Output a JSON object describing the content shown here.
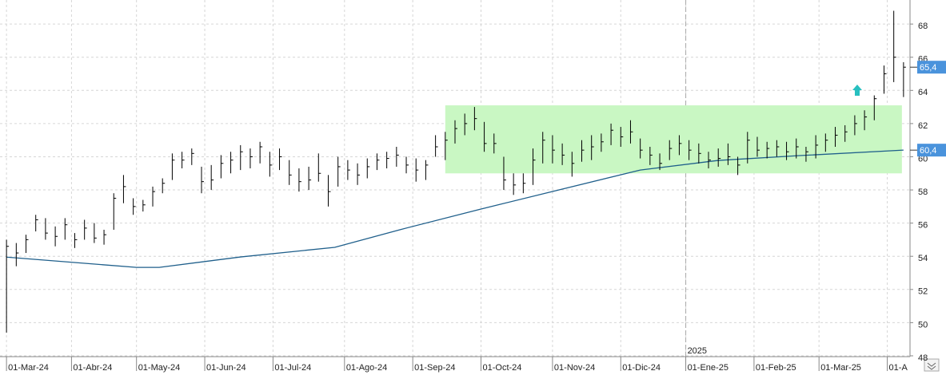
{
  "chart_data": {
    "type": "ohlc",
    "xlim": [
      -2,
      278
    ],
    "ylim": [
      47.95,
      69.45
    ],
    "xticks": [
      {
        "value": 0,
        "label": "01-Mar-24"
      },
      {
        "value": 20,
        "label": "01-Abr-24"
      },
      {
        "value": 40,
        "label": "01-May-24"
      },
      {
        "value": 61,
        "label": "01-Jun-24"
      },
      {
        "value": 82,
        "label": "01-Jul-24"
      },
      {
        "value": 104,
        "label": "01-Ago-24"
      },
      {
        "value": 125,
        "label": "01-Sep-24"
      },
      {
        "value": 146,
        "label": "01-Oct-24"
      },
      {
        "value": 168,
        "label": "01-Nov-24"
      },
      {
        "value": 189,
        "label": "01-Dic-24"
      },
      {
        "value": 209,
        "label": "01-Ene-25"
      },
      {
        "value": 230,
        "label": "01-Feb-25"
      },
      {
        "value": 250,
        "label": "01-Mar-25"
      },
      {
        "value": 271,
        "label": "01-A"
      }
    ],
    "yticks": [
      48,
      50,
      52,
      54,
      56,
      58,
      60,
      62,
      64,
      66,
      68
    ],
    "grid": true,
    "year_marker": {
      "value": 209,
      "label": "2025"
    },
    "bar_color": "#000000",
    "x": [
      0,
      3,
      6,
      9,
      12,
      15,
      18,
      21,
      24,
      27,
      30,
      33,
      36,
      39,
      42,
      45,
      48,
      51,
      54,
      57,
      60,
      63,
      66,
      69,
      72,
      75,
      78,
      81,
      84,
      87,
      90,
      93,
      96,
      99,
      102,
      105,
      108,
      111,
      114,
      117,
      120,
      123,
      126,
      129,
      132,
      135,
      138,
      141,
      144,
      147,
      150,
      153,
      156,
      159,
      162,
      165,
      168,
      171,
      174,
      177,
      180,
      183,
      186,
      189,
      192,
      195,
      198,
      201,
      204,
      207,
      210,
      213,
      216,
      219,
      222,
      225,
      228,
      231,
      234,
      237,
      240,
      243,
      246,
      249,
      252,
      255,
      258,
      261,
      264,
      267,
      270,
      273,
      276
    ],
    "ohlc": {
      "high": [
        55.0,
        54.8,
        55.3,
        56.5,
        56.3,
        55.8,
        56.3,
        55.4,
        56.2,
        56.0,
        55.6,
        57.8,
        58.9,
        57.5,
        57.4,
        58.2,
        58.7,
        60.2,
        60.3,
        60.5,
        59.4,
        59.5,
        60.1,
        60.3,
        60.7,
        60.5,
        60.9,
        60.3,
        60.5,
        59.8,
        59.3,
        59.4,
        60.2,
        58.9,
        60.0,
        59.8,
        59.6,
        59.9,
        60.2,
        60.3,
        60.6,
        60.0,
        59.9,
        59.8,
        61.3,
        61.5,
        62.2,
        62.6,
        63.0,
        62.1,
        61.4,
        60.0,
        59.0,
        59.0,
        60.5,
        61.5,
        61.3,
        60.8,
        60.3,
        61.0,
        61.3,
        61.4,
        62.0,
        61.8,
        62.2,
        61.1,
        60.6,
        60.2,
        61.0,
        61.3,
        61.0,
        60.8,
        60.3,
        60.5,
        60.8,
        60.0,
        61.5,
        61.2,
        60.9,
        61.0,
        60.9,
        61.1,
        60.6,
        61.3,
        61.4,
        61.8,
        61.9,
        62.5,
        62.8,
        63.7,
        65.5,
        68.8,
        65.7
      ],
      "low": [
        49.4,
        53.4,
        54.2,
        55.5,
        55.0,
        54.6,
        55.0,
        54.5,
        55.0,
        54.8,
        54.7,
        55.6,
        57.2,
        56.5,
        56.7,
        57.0,
        57.8,
        58.6,
        59.3,
        59.5,
        57.8,
        58.0,
        58.7,
        59.0,
        59.2,
        59.3,
        59.6,
        58.8,
        59.2,
        58.3,
        57.9,
        58.0,
        58.5,
        57.0,
        58.2,
        58.6,
        58.3,
        58.7,
        59.2,
        59.3,
        59.4,
        59.0,
        58.5,
        58.6,
        60.0,
        59.8,
        60.8,
        61.3,
        61.6,
        60.3,
        60.2,
        58.0,
        57.7,
        57.8,
        58.3,
        59.6,
        59.6,
        59.5,
        58.8,
        59.7,
        59.8,
        60.3,
        60.7,
        60.6,
        60.8,
        59.9,
        59.5,
        59.2,
        59.8,
        60.1,
        59.8,
        59.6,
        59.3,
        59.4,
        59.5,
        58.9,
        59.6,
        60.0,
        59.9,
        60.0,
        59.8,
        59.9,
        59.7,
        59.9,
        60.3,
        60.6,
        60.9,
        61.3,
        61.6,
        62.2,
        63.8,
        64.5,
        63.6
      ],
      "close": [
        54.6,
        54.2,
        55.0,
        56.2,
        55.4,
        55.2,
        55.9,
        55.0,
        55.7,
        55.1,
        55.3,
        57.5,
        58.2,
        57.0,
        57.1,
        57.9,
        58.4,
        59.8,
        59.8,
        60.2,
        58.5,
        58.6,
        59.6,
        59.8,
        60.3,
        60.0,
        60.6,
        59.5,
        60.0,
        58.9,
        58.5,
        58.6,
        59.0,
        57.9,
        59.4,
        59.2,
        58.9,
        59.4,
        59.8,
        59.9,
        60.1,
        59.5,
        59.2,
        59.5,
        60.6,
        61.0,
        61.7,
        62.0,
        62.3,
        60.8,
        60.8,
        58.6,
        58.3,
        58.4,
        59.8,
        61.0,
        60.4,
        60.1,
        59.6,
        60.4,
        60.6,
        60.9,
        61.6,
        61.2,
        61.5,
        60.4,
        60.1,
        59.6,
        60.5,
        60.8,
        60.4,
        60.2,
        59.8,
        59.9,
        60.0,
        59.5,
        61.0,
        60.4,
        60.5,
        60.6,
        60.3,
        60.6,
        60.3,
        60.7,
        61.0,
        61.3,
        61.5,
        62.0,
        62.4,
        63.5,
        65.0,
        66.0,
        65.4
      ]
    },
    "ma": {
      "color": "#1f5f8b",
      "x": [
        0,
        40,
        47,
        72,
        101,
        121,
        146,
        170,
        195,
        219,
        244,
        276
      ],
      "values": [
        53.95,
        53.33,
        53.33,
        53.96,
        54.54,
        55.6,
        56.85,
        58.0,
        59.2,
        59.78,
        60.07,
        60.4
      ]
    },
    "zone": {
      "color": "#c9f7c3",
      "xlim": [
        135,
        275.5
      ],
      "ylim": [
        59.0,
        63.1
      ]
    },
    "last_labels": [
      {
        "value": 65.4,
        "label": "65,4",
        "color": "#4a93dc"
      },
      {
        "value": 60.4,
        "label": "60,4",
        "color": "#4a93dc"
      }
    ]
  }
}
